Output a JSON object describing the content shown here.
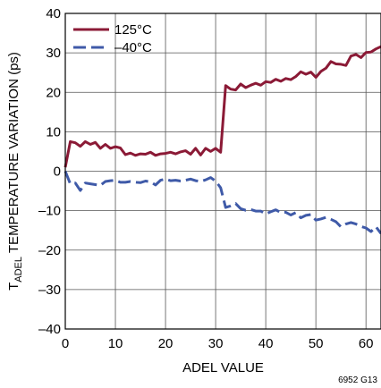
{
  "chart_data": {
    "type": "line",
    "xlabel": "ADEL VALUE",
    "ylabel_prefix": "T",
    "ylabel_subscript": "ADEL",
    "ylabel_rest": " TEMPERATURE VARIATION (ps)",
    "xlim": [
      0,
      63
    ],
    "ylim": [
      -40,
      40
    ],
    "xticks": [
      "0",
      "10",
      "20",
      "30",
      "40",
      "50",
      "60"
    ],
    "xtick_values": [
      0,
      10,
      20,
      30,
      40,
      50,
      60
    ],
    "yticks": [
      "40",
      "30",
      "20",
      "10",
      "0",
      "–10",
      "–20",
      "–30",
      "–40"
    ],
    "ytick_values": [
      40,
      30,
      20,
      10,
      0,
      -10,
      -20,
      -30,
      -40
    ],
    "grid": true,
    "legend_position": "top-left",
    "series": [
      {
        "name": "125°C",
        "color": "#8b1a36",
        "dash": "solid",
        "x": [
          0,
          1,
          2,
          3,
          4,
          5,
          6,
          7,
          8,
          9,
          10,
          11,
          12,
          13,
          14,
          15,
          16,
          17,
          18,
          19,
          20,
          21,
          22,
          23,
          24,
          25,
          26,
          27,
          28,
          29,
          30,
          31,
          32,
          33,
          34,
          35,
          36,
          37,
          38,
          39,
          40,
          41,
          42,
          43,
          44,
          45,
          46,
          47,
          48,
          49,
          50,
          51,
          52,
          53,
          54,
          55,
          56,
          57,
          58,
          59,
          60,
          61,
          62,
          63
        ],
        "y": [
          1,
          7.5,
          7.2,
          6.3,
          7.5,
          6.8,
          7.3,
          5.8,
          6.8,
          5.8,
          6.2,
          5.9,
          4.2,
          4.6,
          4.0,
          4.4,
          4.3,
          4.8,
          4.0,
          4.4,
          4.5,
          4.8,
          4.4,
          4.9,
          5.2,
          4.3,
          5.8,
          4.1,
          5.8,
          5.0,
          5.8,
          4.8,
          21.7,
          20.8,
          20.6,
          22.1,
          21.2,
          21.8,
          22.3,
          21.8,
          22.7,
          22.5,
          23.3,
          22.8,
          23.5,
          23.2,
          24.0,
          25.2,
          24.6,
          25.1,
          23.8,
          25.3,
          26.1,
          27.8,
          27.2,
          27.1,
          26.8,
          29.2,
          29.6,
          28.8,
          30.1,
          30.2,
          31.0,
          31.6
        ]
      },
      {
        "name": "–40°C",
        "color": "#3f5aa8",
        "dash": "dashed",
        "x": [
          0,
          1,
          2,
          3,
          4,
          5,
          6,
          7,
          8,
          9,
          10,
          11,
          12,
          13,
          14,
          15,
          16,
          17,
          18,
          19,
          20,
          21,
          22,
          23,
          24,
          25,
          26,
          27,
          28,
          29,
          30,
          31,
          32,
          33,
          34,
          35,
          36,
          37,
          38,
          39,
          40,
          41,
          42,
          43,
          44,
          45,
          46,
          47,
          48,
          49,
          50,
          51,
          52,
          53,
          54,
          55,
          56,
          57,
          58,
          59,
          60,
          61,
          62,
          63
        ],
        "y": [
          0,
          -3.2,
          -3.0,
          -4.9,
          -3.0,
          -3.2,
          -3.4,
          -3.6,
          -2.6,
          -2.4,
          -2.3,
          -2.8,
          -2.8,
          -2.6,
          -2.8,
          -2.9,
          -2.5,
          -2.7,
          -3.5,
          -2.3,
          -2.0,
          -2.4,
          -2.3,
          -2.5,
          -2.3,
          -2.0,
          -2.4,
          -2.6,
          -2.2,
          -1.6,
          -2.5,
          -4.2,
          -9.2,
          -8.8,
          -8.2,
          -9.5,
          -9.9,
          -9.7,
          -10.1,
          -10.1,
          -10.8,
          -10.3,
          -9.8,
          -10.5,
          -10.4,
          -11.1,
          -10.5,
          -11.8,
          -11.2,
          -11.0,
          -12.4,
          -12.1,
          -11.7,
          -12.2,
          -12.8,
          -14.1,
          -13.4,
          -13.0,
          -13.4,
          -14.0,
          -14.4,
          -15.3,
          -14.1,
          -15.8
        ]
      }
    ],
    "figure_id": "6952 G13"
  }
}
